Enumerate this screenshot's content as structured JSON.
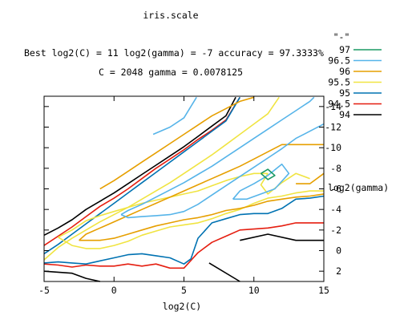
{
  "chart_data": {
    "type": "contour",
    "title": "iris.scale",
    "subtitle_line1": "Best log2(C) = 11  log2(gamma) = -7  accuracy = 97.3333%",
    "subtitle_line2": "C = 2048  gamma = 0.0078125",
    "xlabel": "log2(C)",
    "ylabel": "log2(gamma)",
    "xlim": [
      -5,
      15
    ],
    "ylim": [
      -15,
      3
    ],
    "y_reversed": true,
    "x_ticks": [
      -5,
      0,
      5,
      10,
      15
    ],
    "x_tick_labels": [
      "-5",
      "0",
      "5",
      "10",
      "15"
    ],
    "y_ticks": [
      2,
      0,
      -2,
      -4,
      -6,
      -8,
      -10,
      -12,
      -14
    ],
    "y_tick_labels": [
      "2",
      "0",
      "-2",
      "-4",
      "-6",
      "-8",
      "-10",
      "-12",
      "-14"
    ],
    "legend": {
      "title": "\"-\"",
      "placement": "right",
      "entries": [
        {
          "label": "97",
          "color": "#1a9a63"
        },
        {
          "label": "96.5",
          "color": "#56b4e9"
        },
        {
          "label": "96",
          "color": "#e69f00"
        },
        {
          "label": "95.5",
          "color": "#f0e442"
        },
        {
          "label": "95",
          "color": "#0072b2"
        },
        {
          "label": "94.5",
          "color": "#e51e10"
        },
        {
          "label": "94",
          "color": "#000000"
        }
      ]
    },
    "series": [
      {
        "level": "94",
        "color": "#000000",
        "paths": [
          [
            [
              -5,
              -1.5
            ],
            [
              -4,
              -2.2
            ],
            [
              -3,
              -3.0
            ],
            [
              -2,
              -4.0
            ],
            [
              -1,
              -4.8
            ],
            [
              0,
              -5.6
            ],
            [
              1,
              -6.5
            ],
            [
              2,
              -7.4
            ],
            [
              3,
              -8.3
            ],
            [
              4,
              -9.2
            ],
            [
              5,
              -10.1
            ],
            [
              6,
              -11.1
            ],
            [
              7,
              -12.1
            ],
            [
              8,
              -13.1
            ],
            [
              8.7,
              -14.9
            ]
          ],
          [
            [
              -5,
              2.0
            ],
            [
              -3,
              2.2
            ],
            [
              -2,
              2.7
            ],
            [
              -1,
              3.0
            ]
          ],
          [
            [
              6.8,
              1.2
            ],
            [
              9,
              3.0
            ]
          ],
          [
            [
              9,
              -1.0
            ],
            [
              11,
              -1.6
            ],
            [
              13,
              -1.0
            ],
            [
              15,
              -1.0
            ]
          ]
        ]
      },
      {
        "level": "94.5",
        "color": "#e51e10",
        "paths": [
          [
            [
              -5,
              -0.5
            ],
            [
              -4,
              -1.4
            ],
            [
              -3,
              -2.3
            ],
            [
              -2,
              -3.3
            ],
            [
              -1,
              -4.3
            ],
            [
              0,
              -5.1
            ],
            [
              1,
              -6.0
            ],
            [
              2,
              -7.0
            ],
            [
              3,
              -8.0
            ],
            [
              4,
              -8.9
            ],
            [
              5,
              -9.8
            ],
            [
              6,
              -10.8
            ],
            [
              7,
              -11.7
            ],
            [
              8,
              -12.7
            ],
            [
              9,
              -14.9
            ]
          ],
          [
            [
              -5,
              1.3
            ],
            [
              -4,
              1.4
            ],
            [
              -3,
              1.6
            ],
            [
              -2,
              1.4
            ],
            [
              -1,
              1.5
            ],
            [
              0,
              1.5
            ],
            [
              1,
              1.3
            ],
            [
              2,
              1.5
            ],
            [
              3,
              1.3
            ],
            [
              4,
              1.7
            ],
            [
              5,
              1.7
            ],
            [
              6,
              0.2
            ],
            [
              7,
              -0.8
            ],
            [
              8,
              -1.4
            ],
            [
              9,
              -2.0
            ],
            [
              10,
              -2.1
            ],
            [
              11,
              -2.2
            ],
            [
              12,
              -2.4
            ],
            [
              13,
              -2.7
            ],
            [
              15,
              -2.7
            ]
          ]
        ]
      },
      {
        "level": "95",
        "color": "#0072b2",
        "paths": [
          [
            [
              -5,
              0.3
            ],
            [
              -4,
              -0.6
            ],
            [
              -3,
              -1.6
            ],
            [
              -2,
              -2.6
            ],
            [
              -1,
              -3.6
            ],
            [
              0,
              -4.6
            ],
            [
              1,
              -5.6
            ],
            [
              2,
              -6.6
            ],
            [
              3,
              -7.6
            ],
            [
              4,
              -8.6
            ],
            [
              5,
              -9.6
            ],
            [
              6,
              -10.6
            ],
            [
              7,
              -11.6
            ],
            [
              8,
              -12.6
            ],
            [
              9,
              -14.9
            ]
          ],
          [
            [
              -5,
              1.2
            ],
            [
              -4,
              1.1
            ],
            [
              -3,
              1.2
            ],
            [
              -2,
              1.3
            ],
            [
              -1,
              1.0
            ],
            [
              0,
              0.7
            ],
            [
              1,
              0.4
            ],
            [
              2,
              0.3
            ],
            [
              3,
              0.5
            ],
            [
              4,
              0.7
            ],
            [
              5,
              1.3
            ],
            [
              5.5,
              0.8
            ],
            [
              6,
              -1.2
            ],
            [
              7,
              -2.7
            ],
            [
              8,
              -3.1
            ],
            [
              9,
              -3.5
            ],
            [
              10,
              -3.6
            ],
            [
              11,
              -3.6
            ],
            [
              12,
              -4.1
            ],
            [
              13,
              -5.0
            ],
            [
              14,
              -5.1
            ],
            [
              15,
              -5.3
            ]
          ]
        ]
      },
      {
        "level": "95.5",
        "color": "#f0e442",
        "paths": [
          [
            [
              -5,
              0.9
            ],
            [
              -4,
              -0.3
            ],
            [
              -3,
              -1.2
            ],
            [
              -2,
              -2.0
            ],
            [
              -1,
              -2.8
            ],
            [
              0,
              -3.5
            ],
            [
              1,
              -4.2
            ],
            [
              2,
              -5.0
            ],
            [
              3,
              -5.8
            ],
            [
              4,
              -6.6
            ],
            [
              5,
              -7.5
            ],
            [
              6,
              -8.4
            ],
            [
              7,
              -9.3
            ],
            [
              8,
              -10.3
            ],
            [
              9,
              -11.3
            ],
            [
              10,
              -12.3
            ],
            [
              11,
              -13.3
            ],
            [
              11.8,
              -14.9
            ]
          ],
          [
            [
              -4,
              -1.3
            ],
            [
              -3,
              -2.0
            ],
            [
              -2,
              -2.9
            ],
            [
              -1,
              -3.4
            ],
            [
              0,
              -3.8
            ],
            [
              1,
              -4.2
            ],
            [
              2,
              -4.6
            ],
            [
              3,
              -4.9
            ],
            [
              4,
              -5.2
            ],
            [
              5,
              -5.5
            ],
            [
              6,
              -5.8
            ],
            [
              7,
              -6.3
            ],
            [
              8,
              -6.8
            ],
            [
              9,
              -7.2
            ],
            [
              10,
              -7.5
            ],
            [
              11,
              -7.5
            ]
          ],
          [
            [
              11,
              -7.5
            ],
            [
              10.5,
              -6.4
            ],
            [
              11,
              -5.5
            ],
            [
              12,
              -6.6
            ],
            [
              13,
              -7.5
            ],
            [
              14,
              -7.0
            ]
          ],
          [
            [
              -4,
              -1.3
            ],
            [
              -3,
              -0.5
            ],
            [
              -2,
              -0.2
            ],
            [
              -1,
              -0.2
            ],
            [
              0,
              -0.5
            ],
            [
              1,
              -0.9
            ],
            [
              2,
              -1.5
            ],
            [
              3,
              -1.9
            ],
            [
              4,
              -2.3
            ],
            [
              5,
              -2.5
            ],
            [
              6,
              -2.7
            ],
            [
              7,
              -3.1
            ],
            [
              8,
              -3.6
            ],
            [
              9,
              -4.0
            ],
            [
              10,
              -4.6
            ],
            [
              11,
              -5.1
            ],
            [
              12,
              -5.3
            ],
            [
              13,
              -5.6
            ],
            [
              14,
              -5.8
            ],
            [
              15,
              -5.8
            ]
          ]
        ]
      },
      {
        "level": "96",
        "color": "#e69f00",
        "paths": [
          [
            [
              -1,
              -6.0
            ],
            [
              0,
              -6.8
            ],
            [
              1,
              -7.7
            ],
            [
              2,
              -8.6
            ],
            [
              3,
              -9.5
            ],
            [
              4,
              -10.4
            ],
            [
              5,
              -11.3
            ],
            [
              6,
              -12.2
            ],
            [
              7,
              -13.1
            ],
            [
              8,
              -13.8
            ],
            [
              9,
              -14.5
            ],
            [
              10,
              -14.9
            ]
          ],
          [
            [
              -2.5,
              -1.0
            ],
            [
              -2,
              -1.6
            ],
            [
              -1,
              -2.2
            ],
            [
              0,
              -2.8
            ],
            [
              1,
              -3.4
            ],
            [
              2,
              -4.0
            ],
            [
              3,
              -4.6
            ],
            [
              4,
              -5.2
            ],
            [
              5,
              -5.8
            ],
            [
              6,
              -6.4
            ],
            [
              7,
              -7.0
            ],
            [
              8,
              -7.6
            ],
            [
              9,
              -8.2
            ],
            [
              10,
              -8.9
            ],
            [
              11,
              -9.6
            ],
            [
              12,
              -10.3
            ],
            [
              13,
              -10.3
            ],
            [
              14,
              -10.3
            ],
            [
              15,
              -10.3
            ]
          ],
          [
            [
              -2.5,
              -1.0
            ],
            [
              -2,
              -1.0
            ],
            [
              -1,
              -1.0
            ],
            [
              0,
              -1.2
            ],
            [
              1,
              -1.6
            ],
            [
              2,
              -2.0
            ],
            [
              3,
              -2.4
            ],
            [
              4,
              -2.7
            ],
            [
              5,
              -3.0
            ],
            [
              6,
              -3.2
            ],
            [
              7,
              -3.5
            ],
            [
              8,
              -3.9
            ],
            [
              9,
              -4.1
            ],
            [
              10,
              -4.4
            ],
            [
              11,
              -4.8
            ],
            [
              12,
              -5.0
            ],
            [
              13,
              -5.2
            ],
            [
              14,
              -5.3
            ],
            [
              15,
              -5.5
            ]
          ],
          [
            [
              13,
              -6.5
            ],
            [
              14,
              -6.5
            ],
            [
              15,
              -7.5
            ]
          ]
        ]
      },
      {
        "level": "96.5",
        "color": "#56b4e9",
        "paths": [
          [
            [
              0.5,
              -3.5
            ],
            [
              1,
              -3.9
            ],
            [
              2,
              -4.5
            ],
            [
              3,
              -5.2
            ],
            [
              4,
              -5.9
            ],
            [
              5,
              -6.6
            ],
            [
              6,
              -7.4
            ],
            [
              7,
              -8.2
            ],
            [
              8,
              -9.1
            ],
            [
              9,
              -10.0
            ],
            [
              10,
              -10.9
            ],
            [
              11,
              -11.8
            ],
            [
              12,
              -12.7
            ],
            [
              13,
              -13.6
            ],
            [
              14,
              -14.5
            ],
            [
              14.3,
              -14.9
            ]
          ],
          [
            [
              0.5,
              -3.5
            ],
            [
              1,
              -3.2
            ],
            [
              2,
              -3.3
            ],
            [
              3,
              -3.4
            ],
            [
              4,
              -3.5
            ],
            [
              5,
              -3.8
            ],
            [
              6,
              -4.5
            ],
            [
              7,
              -5.4
            ],
            [
              8,
              -6.3
            ],
            [
              9,
              -7.2
            ],
            [
              10,
              -8.1
            ],
            [
              11,
              -9.0
            ],
            [
              12,
              -9.9
            ],
            [
              13,
              -10.9
            ],
            [
              14,
              -11.6
            ],
            [
              15,
              -12.3
            ]
          ],
          [
            [
              2.8,
              -11.3
            ],
            [
              4,
              -12.0
            ],
            [
              5,
              -12.9
            ],
            [
              5.9,
              -14.9
            ]
          ],
          [
            [
              8.5,
              -5.0
            ],
            [
              9,
              -5.8
            ],
            [
              10,
              -6.5
            ],
            [
              11,
              -7.3
            ],
            [
              12,
              -8.4
            ],
            [
              12.5,
              -7.5
            ],
            [
              11.5,
              -6.0
            ],
            [
              10.5,
              -5.5
            ],
            [
              9.5,
              -5.0
            ],
            [
              8.5,
              -5.0
            ]
          ]
        ]
      },
      {
        "level": "97",
        "color": "#1a9a63",
        "paths": [
          [
            [
              10.5,
              -7.5
            ],
            [
              11,
              -7.9
            ],
            [
              11.5,
              -7.3
            ],
            [
              11,
              -6.9
            ],
            [
              10.5,
              -7.5
            ]
          ]
        ]
      }
    ]
  }
}
